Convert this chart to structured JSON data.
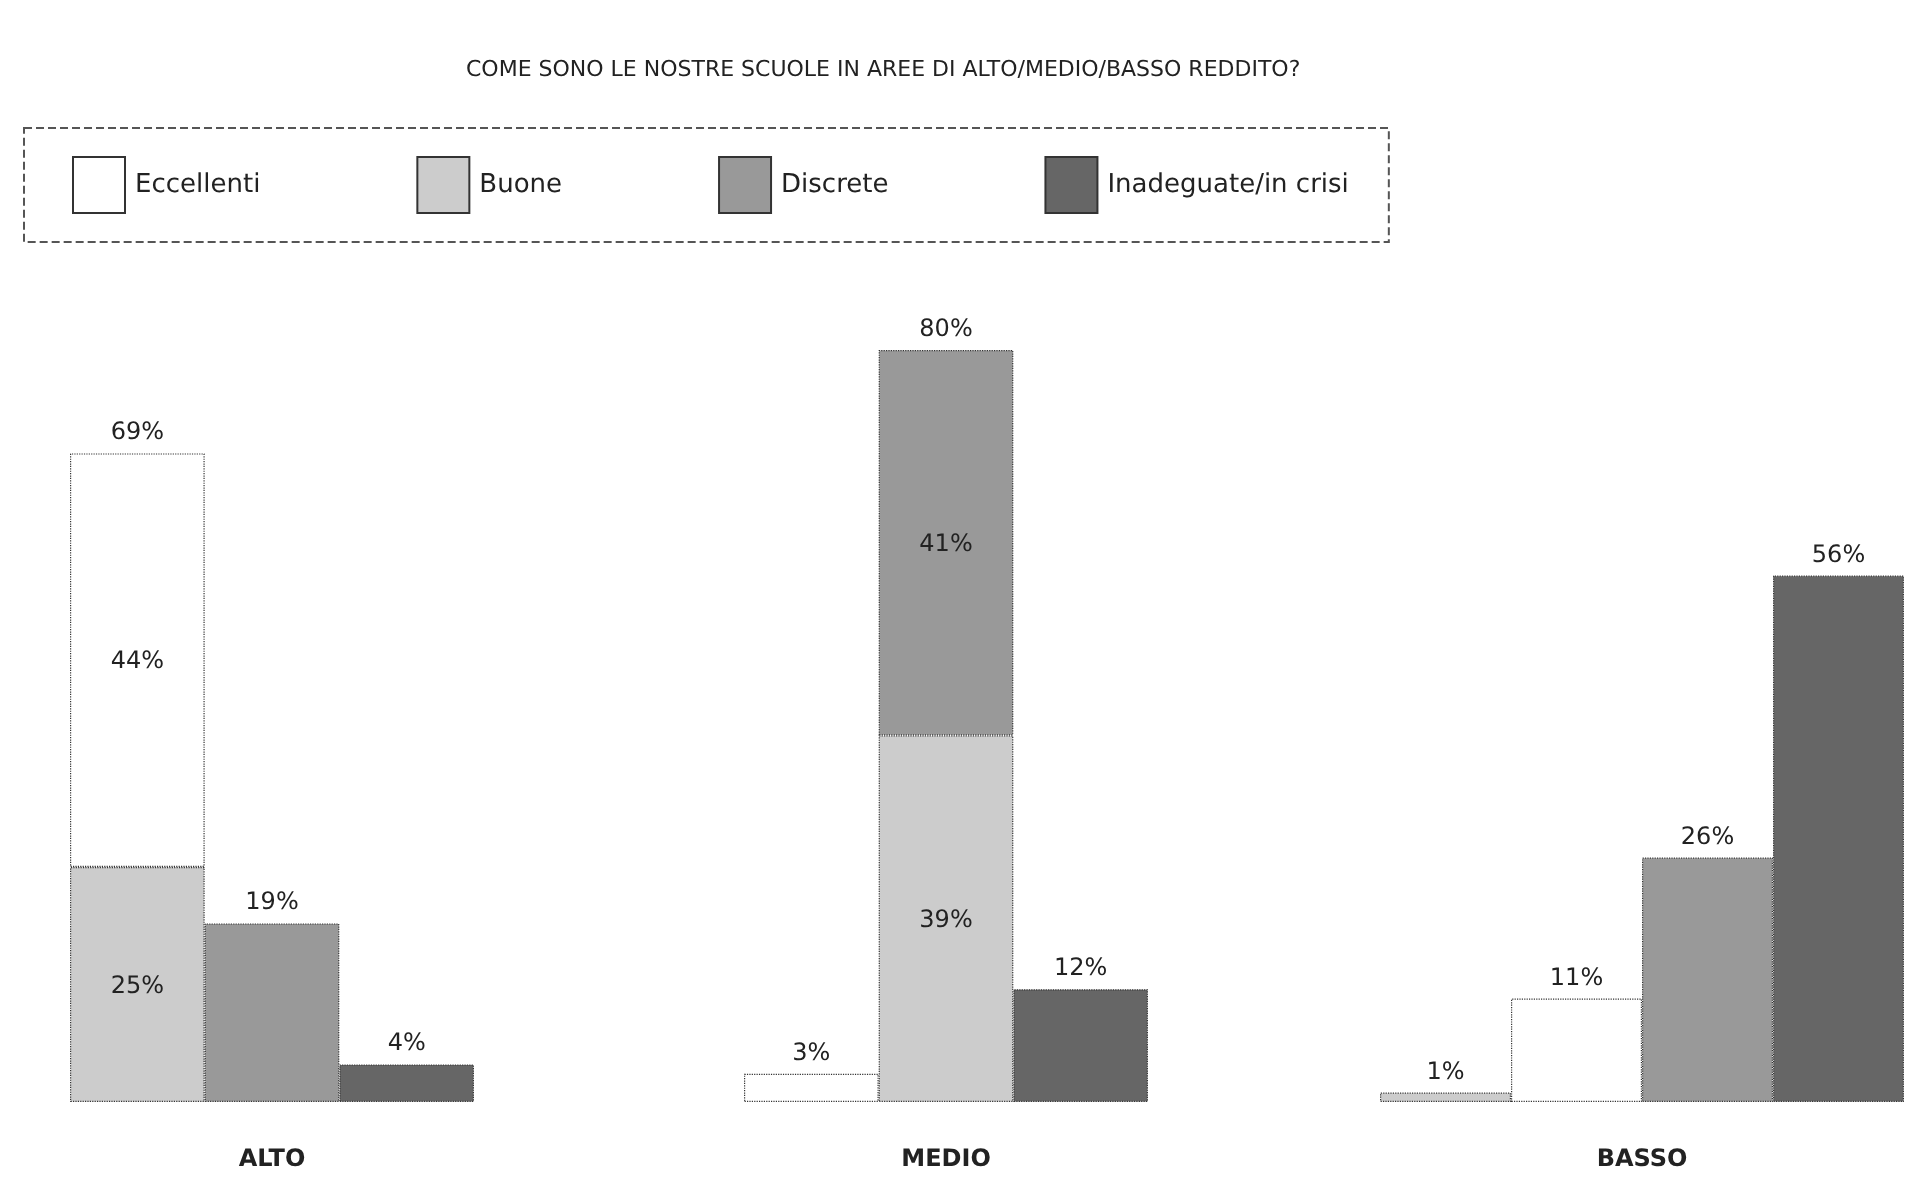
{
  "chart_data": [
    {
      "type": "bar",
      "xlabel": "ALTO",
      "categories": [
        null,
        null,
        null
      ],
      "stacked": true,
      "tick_labels": false,
      "totals": [
        "69%",
        null,
        null
      ],
      "series": [
        {
          "color": "#cccccc",
          "values": [
            25,
            null,
            null
          ],
          "value_labels": [
            "25%",
            null,
            null
          ]
        },
        {
          "color": "#ffffff",
          "values": [
            44,
            null,
            null
          ],
          "value_labels": [
            "44%",
            null,
            null
          ]
        },
        {
          "color": "#999999",
          "values": [
            null,
            19,
            null
          ],
          "value_labels": [
            null,
            "19%",
            null
          ]
        },
        {
          "color": "#666666",
          "values": [
            null,
            null,
            4
          ],
          "value_labels": [
            null,
            null,
            "4%"
          ]
        }
      ]
    },
    {
      "type": "bar",
      "title": "COME SONO LE NOSTRE SCUOLE IN AREE DI ALTO/MEDIO/BASSO REDDITO?",
      "xlabel": "MEDIO",
      "categories": [
        null,
        null,
        null
      ],
      "stacked": true,
      "tick_labels": false,
      "legend": "top",
      "totals": [
        null,
        "80%",
        null
      ],
      "series": [
        {
          "name": "Eccellenti",
          "color": "#ffffff",
          "values": [
            3,
            null,
            null
          ],
          "value_labels": [
            "3%",
            null,
            null
          ]
        },
        {
          "name": "Buone",
          "color": "#cccccc",
          "values": [
            null,
            39,
            null
          ],
          "value_labels": [
            null,
            "39%",
            null
          ]
        },
        {
          "name": "Discrete",
          "color": "#999999",
          "values": [
            null,
            41,
            null
          ],
          "value_labels": [
            null,
            "41%",
            null
          ]
        },
        {
          "name": "Inadeguate/in crisi",
          "color": "#666666",
          "values": [
            null,
            null,
            12
          ],
          "value_labels": [
            null,
            null,
            "12%"
          ]
        }
      ]
    },
    {
      "type": "bar",
      "xlabel": "BASSO",
      "categories": [
        null,
        null,
        null,
        null
      ],
      "stacked": true,
      "tick_labels": false,
      "series": [
        {
          "color": "#cccccc",
          "values": [
            1,
            null,
            null,
            null
          ],
          "value_labels": [
            "1%",
            null,
            null,
            null
          ]
        },
        {
          "color": "#ffffff",
          "values": [
            null,
            11,
            null,
            null
          ],
          "value_labels": [
            null,
            "11%",
            null,
            null
          ]
        },
        {
          "color": "#999999",
          "values": [
            null,
            null,
            26,
            null
          ],
          "value_labels": [
            null,
            null,
            "26%",
            null
          ]
        },
        {
          "color": "#666666",
          "values": [
            null,
            null,
            null,
            56
          ],
          "value_labels": [
            null,
            null,
            null,
            "56%"
          ]
        }
      ]
    }
  ]
}
